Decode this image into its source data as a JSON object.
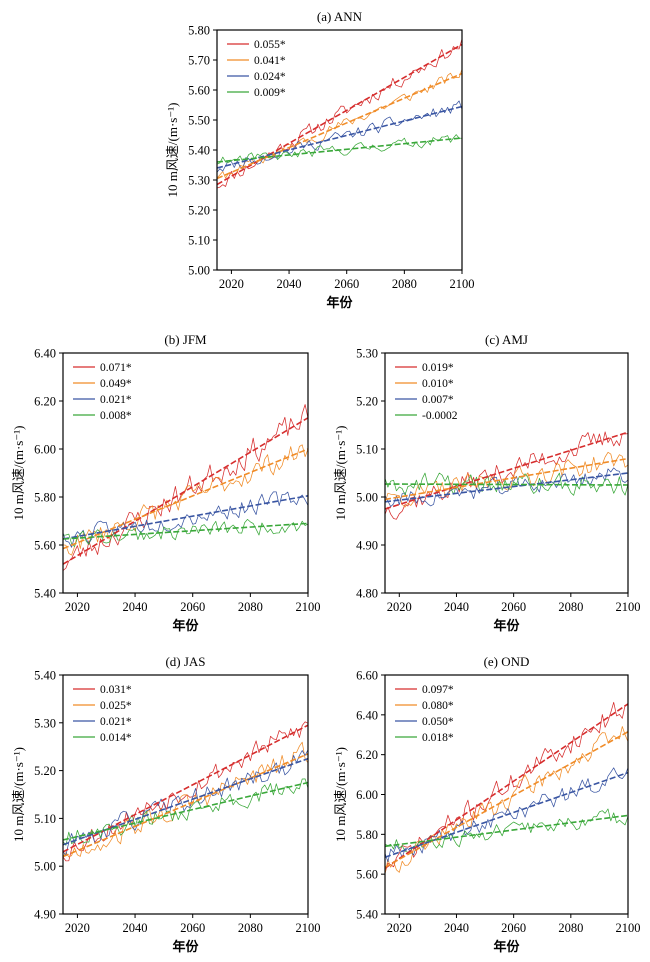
{
  "figure": {
    "series_colors": [
      "#d62d2d",
      "#f08c28",
      "#3a56a3",
      "#3aa83a"
    ]
  },
  "chart_data": [
    {
      "id": "a",
      "type": "line",
      "title": "(a) ANN",
      "xlabel": "年份",
      "ylabel": "10 m风速/(m·s⁻¹)",
      "xlim": [
        2015,
        2100
      ],
      "ylim": [
        5.0,
        5.8
      ],
      "xticks": [
        2020,
        2040,
        2060,
        2080,
        2100
      ],
      "yticks": [
        "5.00",
        "5.10",
        "5.20",
        "5.30",
        "5.40",
        "5.50",
        "5.60",
        "5.70",
        "5.80"
      ],
      "legend_position": "top-left",
      "series": [
        {
          "name": "0.055*",
          "color": "#d62d2d",
          "trend": [
            [
              2015,
              5.285
            ],
            [
              2100,
              5.752
            ]
          ]
        },
        {
          "name": "0.041*",
          "color": "#f08c28",
          "trend": [
            [
              2015,
              5.305
            ],
            [
              2100,
              5.655
            ]
          ]
        },
        {
          "name": "0.024*",
          "color": "#3a56a3",
          "trend": [
            [
              2015,
              5.34
            ],
            [
              2100,
              5.545
            ]
          ]
        },
        {
          "name": "0.009*",
          "color": "#3aa83a",
          "trend": [
            [
              2015,
              5.36
            ],
            [
              2100,
              5.44
            ]
          ]
        }
      ]
    },
    {
      "id": "b",
      "type": "line",
      "title": "(b) JFM",
      "xlabel": "年份",
      "ylabel": "10 m风速/(m·s⁻¹)",
      "xlim": [
        2015,
        2100
      ],
      "ylim": [
        5.4,
        6.4
      ],
      "xticks": [
        2020,
        2040,
        2060,
        2080,
        2100
      ],
      "yticks": [
        "5.40",
        "5.60",
        "5.80",
        "6.00",
        "6.20",
        "6.40"
      ],
      "legend_position": "top-left",
      "series": [
        {
          "name": "0.071*",
          "color": "#d62d2d",
          "trend": [
            [
              2015,
              5.52
            ],
            [
              2100,
              6.13
            ]
          ]
        },
        {
          "name": "0.049*",
          "color": "#f08c28",
          "trend": [
            [
              2015,
              5.585
            ],
            [
              2100,
              6.0
            ]
          ]
        },
        {
          "name": "0.021*",
          "color": "#3a56a3",
          "trend": [
            [
              2015,
              5.625
            ],
            [
              2100,
              5.805
            ]
          ]
        },
        {
          "name": "0.008*",
          "color": "#3aa83a",
          "trend": [
            [
              2015,
              5.625
            ],
            [
              2100,
              5.69
            ]
          ]
        }
      ]
    },
    {
      "id": "c",
      "type": "line",
      "title": "(c) AMJ",
      "xlabel": "年份",
      "ylabel": "10 m风速/(m·s⁻¹)",
      "xlim": [
        2015,
        2100
      ],
      "ylim": [
        4.8,
        5.3
      ],
      "xticks": [
        2020,
        2040,
        2060,
        2080,
        2100
      ],
      "yticks": [
        "4.80",
        "4.90",
        "5.00",
        "5.10",
        "5.20",
        "5.30"
      ],
      "legend_position": "top-left",
      "series": [
        {
          "name": "0.019*",
          "color": "#d62d2d",
          "trend": [
            [
              2015,
              4.975
            ],
            [
              2100,
              5.135
            ]
          ]
        },
        {
          "name": "0.010*",
          "color": "#f08c28",
          "trend": [
            [
              2015,
              4.995
            ],
            [
              2100,
              5.08
            ]
          ]
        },
        {
          "name": "0.007*",
          "color": "#3a56a3",
          "trend": [
            [
              2015,
              4.99
            ],
            [
              2100,
              5.05
            ]
          ]
        },
        {
          "name": "-0.0002",
          "color": "#3aa83a",
          "trend": [
            [
              2015,
              5.027
            ],
            [
              2100,
              5.025
            ]
          ]
        }
      ]
    },
    {
      "id": "d",
      "type": "line",
      "title": "(d) JAS",
      "xlabel": "年份",
      "ylabel": "10 m风速/(m·s⁻¹)",
      "xlim": [
        2015,
        2100
      ],
      "ylim": [
        4.9,
        5.4
      ],
      "xticks": [
        2020,
        2040,
        2060,
        2080,
        2100
      ],
      "yticks": [
        "4.90",
        "5.00",
        "5.10",
        "5.20",
        "5.30",
        "5.40"
      ],
      "legend_position": "top-left",
      "series": [
        {
          "name": "0.031*",
          "color": "#d62d2d",
          "trend": [
            [
              2015,
              5.03
            ],
            [
              2100,
              5.295
            ]
          ]
        },
        {
          "name": "0.025*",
          "color": "#f08c28",
          "trend": [
            [
              2015,
              5.02
            ],
            [
              2100,
              5.235
            ]
          ]
        },
        {
          "name": "0.021*",
          "color": "#3a56a3",
          "trend": [
            [
              2015,
              5.045
            ],
            [
              2100,
              5.225
            ]
          ]
        },
        {
          "name": "0.014*",
          "color": "#3aa83a",
          "trend": [
            [
              2015,
              5.055
            ],
            [
              2100,
              5.175
            ]
          ]
        }
      ]
    },
    {
      "id": "e",
      "type": "line",
      "title": "(e) OND",
      "xlabel": "年份",
      "ylabel": "10 m风速/(m·s⁻¹)",
      "xlim": [
        2015,
        2100
      ],
      "ylim": [
        5.4,
        6.6
      ],
      "xticks": [
        2020,
        2040,
        2060,
        2080,
        2100
      ],
      "yticks": [
        "5.40",
        "5.60",
        "5.80",
        "6.00",
        "6.20",
        "6.40",
        "6.60"
      ],
      "legend_position": "top-left",
      "series": [
        {
          "name": "0.097*",
          "color": "#d62d2d",
          "trend": [
            [
              2015,
              5.63
            ],
            [
              2100,
              6.455
            ]
          ]
        },
        {
          "name": "0.080*",
          "color": "#f08c28",
          "trend": [
            [
              2015,
              5.635
            ],
            [
              2100,
              6.315
            ]
          ]
        },
        {
          "name": "0.050*",
          "color": "#3a56a3",
          "trend": [
            [
              2015,
              5.685
            ],
            [
              2100,
              6.11
            ]
          ]
        },
        {
          "name": "0.018*",
          "color": "#3aa83a",
          "trend": [
            [
              2015,
              5.74
            ],
            [
              2100,
              5.895
            ]
          ]
        }
      ]
    }
  ]
}
